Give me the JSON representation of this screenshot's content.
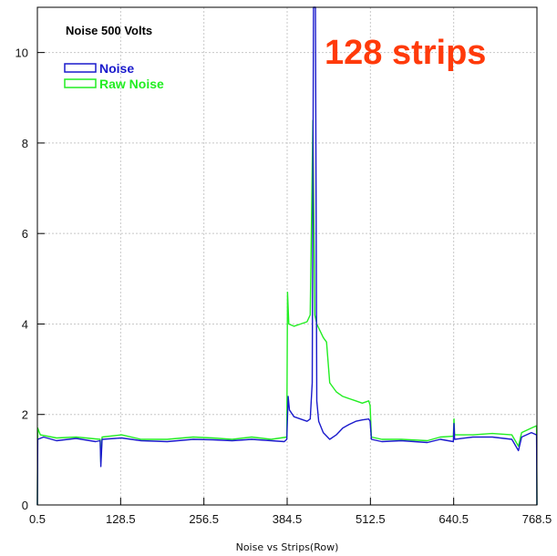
{
  "chart_data": {
    "type": "line",
    "title": "Noise 500 Volts",
    "annotation": "128 strips",
    "xlabel": "Noise vs Strips(Row)",
    "ylabel": "",
    "xlim": [
      0.5,
      768.5
    ],
    "ylim": [
      0,
      11
    ],
    "xticks": [
      "0.5",
      "128.5",
      "256.5",
      "384.5",
      "512.5",
      "640.5",
      "768.5"
    ],
    "xtick_values": [
      0.5,
      128.5,
      256.5,
      384.5,
      512.5,
      640.5,
      768.5
    ],
    "yticks": [
      "0",
      "2",
      "4",
      "6",
      "8",
      "10"
    ],
    "ytick_values": [
      0,
      2,
      4,
      6,
      8,
      10
    ],
    "grid": true,
    "legend_position": "top-left",
    "series": [
      {
        "name": "Noise",
        "color": "#1a1acc",
        "points": [
          [
            0.5,
            0
          ],
          [
            1,
            1.45
          ],
          [
            10,
            1.5
          ],
          [
            30,
            1.42
          ],
          [
            60,
            1.47
          ],
          [
            90,
            1.4
          ],
          [
            97,
            1.42
          ],
          [
            98,
            0.85
          ],
          [
            100,
            1.45
          ],
          [
            130,
            1.48
          ],
          [
            160,
            1.42
          ],
          [
            200,
            1.4
          ],
          [
            240,
            1.45
          ],
          [
            270,
            1.44
          ],
          [
            300,
            1.42
          ],
          [
            330,
            1.45
          ],
          [
            360,
            1.42
          ],
          [
            380,
            1.4
          ],
          [
            384,
            1.45
          ],
          [
            386,
            2.4
          ],
          [
            388,
            2.1
          ],
          [
            395,
            1.95
          ],
          [
            405,
            1.9
          ],
          [
            415,
            1.85
          ],
          [
            420,
            1.9
          ],
          [
            423,
            2.7
          ],
          [
            425,
            11
          ],
          [
            428,
            11
          ],
          [
            430,
            2.3
          ],
          [
            433,
            1.85
          ],
          [
            440,
            1.6
          ],
          [
            450,
            1.45
          ],
          [
            460,
            1.55
          ],
          [
            470,
            1.7
          ],
          [
            480,
            1.78
          ],
          [
            490,
            1.85
          ],
          [
            500,
            1.88
          ],
          [
            510,
            1.9
          ],
          [
            512,
            1.85
          ],
          [
            514,
            1.45
          ],
          [
            530,
            1.4
          ],
          [
            560,
            1.42
          ],
          [
            600,
            1.38
          ],
          [
            620,
            1.45
          ],
          [
            640,
            1.4
          ],
          [
            641,
            1.8
          ],
          [
            642,
            1.45
          ],
          [
            670,
            1.5
          ],
          [
            700,
            1.5
          ],
          [
            730,
            1.45
          ],
          [
            740,
            1.2
          ],
          [
            745,
            1.5
          ],
          [
            760,
            1.6
          ],
          [
            768,
            1.55
          ],
          [
            768.5,
            0
          ]
        ]
      },
      {
        "name": "Raw Noise",
        "color": "#22ee22",
        "points": [
          [
            0.5,
            0
          ],
          [
            1,
            1.7
          ],
          [
            5,
            1.55
          ],
          [
            30,
            1.48
          ],
          [
            60,
            1.5
          ],
          [
            97,
            1.45
          ],
          [
            98,
            0.95
          ],
          [
            100,
            1.5
          ],
          [
            130,
            1.55
          ],
          [
            160,
            1.45
          ],
          [
            200,
            1.45
          ],
          [
            240,
            1.5
          ],
          [
            270,
            1.48
          ],
          [
            300,
            1.45
          ],
          [
            330,
            1.5
          ],
          [
            360,
            1.45
          ],
          [
            384,
            1.5
          ],
          [
            385,
            4.7
          ],
          [
            387,
            4.0
          ],
          [
            395,
            3.95
          ],
          [
            405,
            4.0
          ],
          [
            415,
            4.05
          ],
          [
            420,
            4.2
          ],
          [
            424,
            8.5
          ],
          [
            427,
            4.2
          ],
          [
            430,
            4.0
          ],
          [
            440,
            3.7
          ],
          [
            445,
            3.6
          ],
          [
            450,
            2.7
          ],
          [
            460,
            2.5
          ],
          [
            470,
            2.4
          ],
          [
            480,
            2.35
          ],
          [
            490,
            2.3
          ],
          [
            500,
            2.25
          ],
          [
            510,
            2.3
          ],
          [
            512,
            2.2
          ],
          [
            514,
            1.5
          ],
          [
            530,
            1.45
          ],
          [
            560,
            1.45
          ],
          [
            600,
            1.42
          ],
          [
            620,
            1.5
          ],
          [
            640,
            1.52
          ],
          [
            641,
            1.9
          ],
          [
            642,
            1.55
          ],
          [
            670,
            1.55
          ],
          [
            700,
            1.58
          ],
          [
            730,
            1.55
          ],
          [
            740,
            1.3
          ],
          [
            745,
            1.6
          ],
          [
            760,
            1.7
          ],
          [
            768,
            1.75
          ],
          [
            768.5,
            0
          ]
        ]
      }
    ]
  }
}
